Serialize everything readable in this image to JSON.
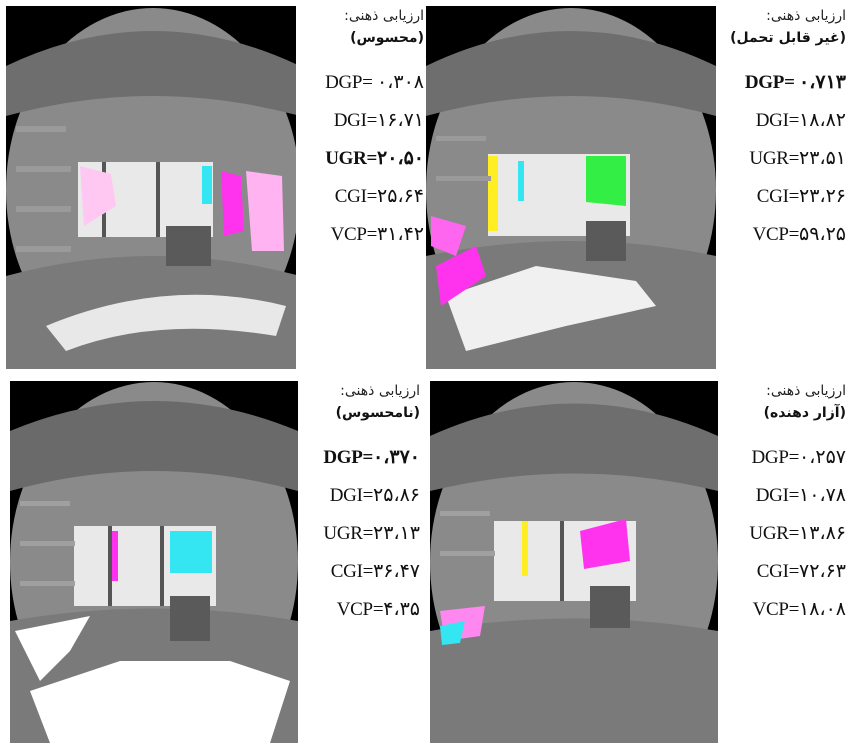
{
  "panels": [
    {
      "assessment_label": "ارزیابی ذهنی:",
      "verdict": "(محسوس)",
      "bold_metric": "UGR",
      "metrics": [
        "DGP= ۰،۳۰۸",
        "DGI=۱۶،۷۱",
        "UGR=۲۰،۵۰",
        "CGI=۲۵،۶۴",
        "VCP=۳۱،۴۲"
      ]
    },
    {
      "assessment_label": "ارزیابی ذهنی:",
      "verdict": "(غیر قابل تحمل)",
      "bold_metric": "DGP",
      "metrics": [
        "DGP= ۰،۷۱۳",
        "DGI=۱۸،۸۲",
        "UGR=۲۳،۵۱",
        "CGI=۲۳،۲۶",
        "VCP=۵۹،۲۵"
      ]
    },
    {
      "assessment_label": "ارزیابی ذهنی:",
      "verdict": "(نامحسوس)",
      "bold_metric": "DGP",
      "metrics": [
        "DGP=۰،۳۷۰",
        "DGI=۲۵،۸۶",
        "UGR=۲۳،۱۳",
        "CGI=۳۶،۴۷",
        "VCP=۴،۳۵"
      ]
    },
    {
      "assessment_label": "ارزیابی ذهنی:",
      "verdict": "(آزار دهنده)",
      "bold_metric": "",
      "metrics": [
        "DGP=۰،۲۵۷",
        "DGI=۱۰،۷۸",
        "UGR=۱۳،۸۶",
        "CGI=۷۲،۶۳",
        "VCP=۱۸،۰۸"
      ]
    }
  ],
  "colors": {
    "frame": "#000000",
    "glare_magenta": "#ff33ee",
    "glare_pink": "#ffb3f0",
    "glare_cyan": "#33e6f2",
    "glare_green": "#33ee44",
    "glare_yellow": "#ffee22"
  }
}
